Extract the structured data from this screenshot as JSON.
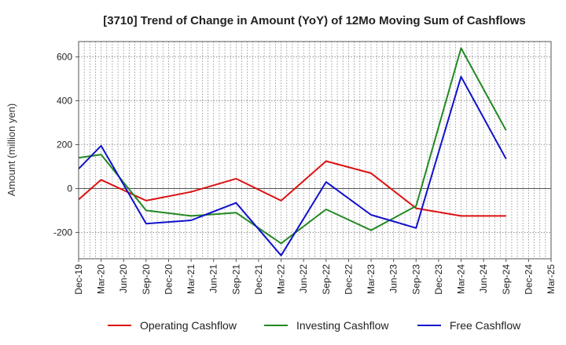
{
  "chart_data": {
    "type": "line",
    "title": "[3710]  Trend of Change in Amount (YoY) of 12Mo Moving Sum of Cashflows",
    "xlabel": "",
    "ylabel": "Amount (million yen)",
    "ylim": [
      -320,
      670
    ],
    "yticks": [
      -200,
      0,
      200,
      400,
      600
    ],
    "ytick_labels": [
      "-200",
      "0",
      "200",
      "400",
      "600"
    ],
    "categories": [
      "Dec-19",
      "Mar-20",
      "Jun-20",
      "Sep-20",
      "Dec-20",
      "Mar-21",
      "Jun-21",
      "Sep-21",
      "Dec-21",
      "Mar-22",
      "Jun-22",
      "Sep-22",
      "Dec-22",
      "Mar-23",
      "Jun-23",
      "Sep-23",
      "Dec-23",
      "Mar-24",
      "Jun-24",
      "Sep-24",
      "Dec-24",
      "Mar-25"
    ],
    "grid": true,
    "legend_position": "bottom",
    "series": [
      {
        "name": "Operating Cashflow",
        "color": "#dd1111",
        "values": [
          -50,
          40,
          null,
          -55,
          null,
          -15,
          null,
          45,
          null,
          -55,
          null,
          125,
          null,
          70,
          null,
          -90,
          null,
          -125,
          null,
          -125,
          null,
          null
        ]
      },
      {
        "name": "Investing Cashflow",
        "color": "#228822",
        "values": [
          140,
          155,
          null,
          -100,
          null,
          -125,
          null,
          -110,
          null,
          -250,
          null,
          -95,
          null,
          -190,
          null,
          -80,
          null,
          640,
          null,
          265,
          null,
          null
        ]
      },
      {
        "name": "Free Cashflow",
        "color": "#1111cc",
        "values": [
          90,
          195,
          null,
          -160,
          null,
          -145,
          null,
          -65,
          null,
          -305,
          null,
          30,
          null,
          -120,
          null,
          -180,
          null,
          510,
          null,
          135,
          null,
          null
        ]
      }
    ]
  }
}
